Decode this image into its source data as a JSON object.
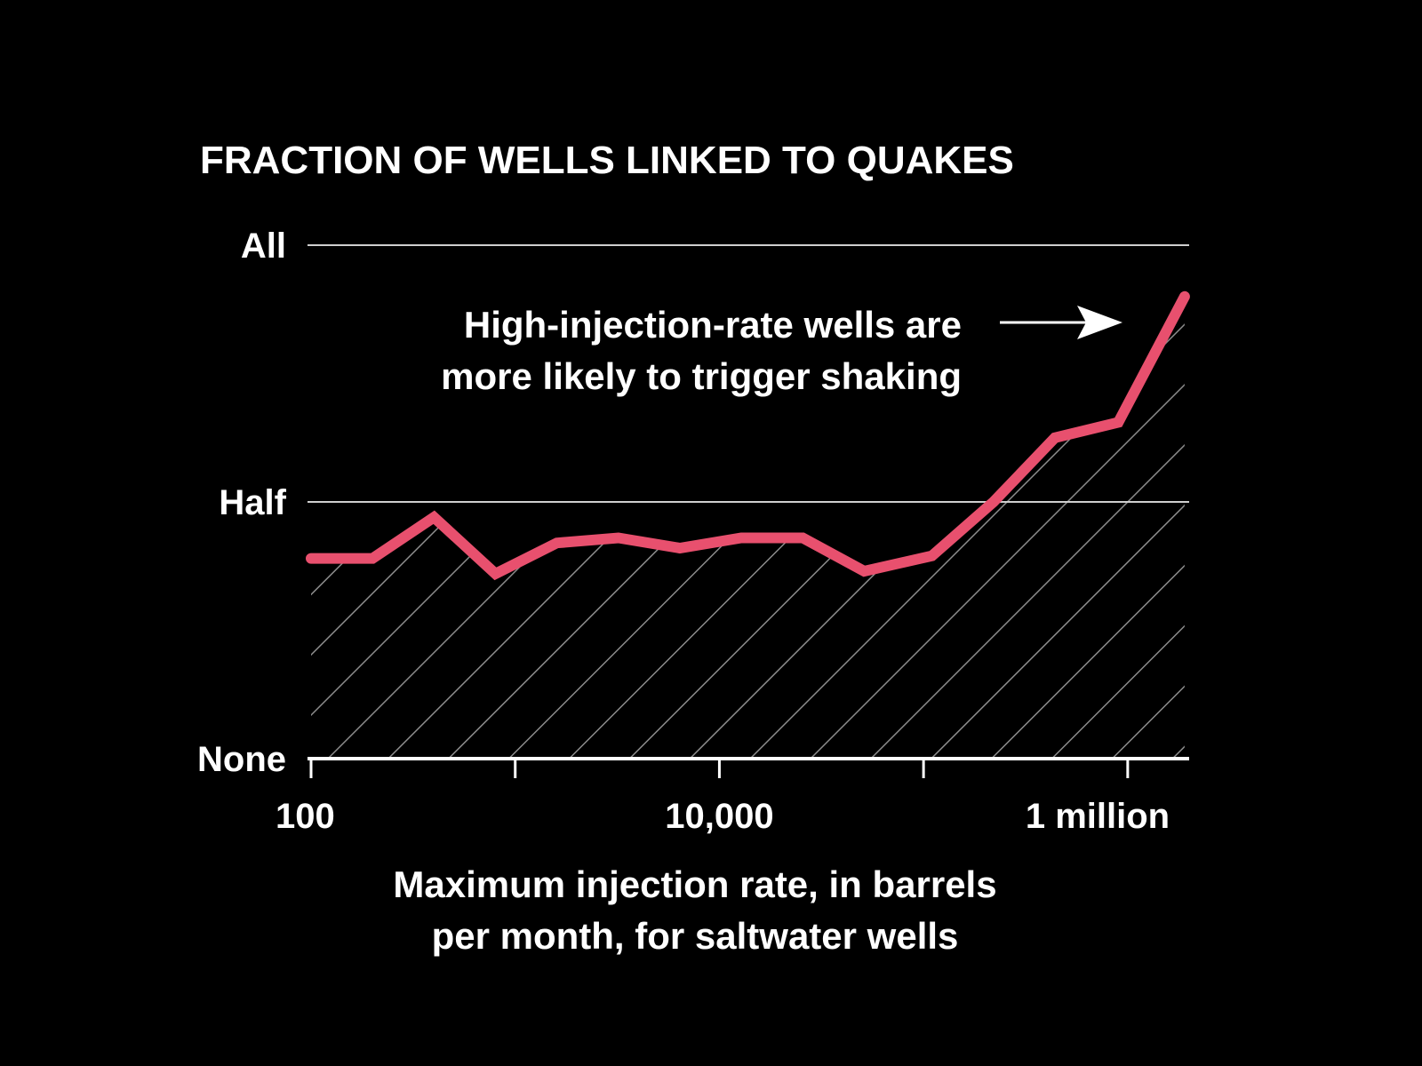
{
  "chart_data": {
    "type": "line",
    "title": "FRACTION OF WELLS LINKED TO QUAKES",
    "xlabel_lines": [
      "Maximum injection rate, in barrels",
      "per month, for saltwater wells"
    ],
    "x_scale": "log",
    "xlim": [
      100,
      2000000
    ],
    "ylim": [
      0,
      1
    ],
    "x_ticks": [
      {
        "value": 100,
        "label": "100"
      },
      {
        "value": 1000,
        "label": ""
      },
      {
        "value": 10000,
        "label": "10,000"
      },
      {
        "value": 100000,
        "label": ""
      },
      {
        "value": 1000000,
        "label": "1 million"
      }
    ],
    "y_ticks": [
      {
        "value": 0,
        "label": "None"
      },
      {
        "value": 0.5,
        "label": "Half"
      },
      {
        "value": 1,
        "label": "All"
      }
    ],
    "annotation_lines": [
      "High-injection-rate wells are",
      "more likely to trigger shaking"
    ],
    "line_color": "#e8506e",
    "grid_color": "#cfcfcf",
    "hatch_color": "#8c8c8c",
    "background": "#000000",
    "series": [
      {
        "points": [
          [
            100,
            0.39
          ],
          [
            200,
            0.39
          ],
          [
            400,
            0.47
          ],
          [
            800,
            0.36
          ],
          [
            1600,
            0.42
          ],
          [
            3200,
            0.43
          ],
          [
            6400,
            0.41
          ],
          [
            12800,
            0.43
          ],
          [
            25600,
            0.43
          ],
          [
            51200,
            0.365
          ],
          [
            110000,
            0.395
          ],
          [
            220000,
            0.5
          ],
          [
            440000,
            0.625
          ],
          [
            900000,
            0.655
          ],
          [
            1900000,
            0.9
          ]
        ]
      }
    ]
  }
}
